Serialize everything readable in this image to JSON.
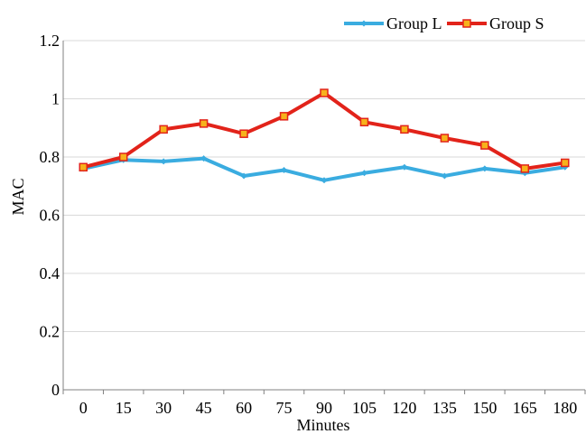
{
  "chart_data": {
    "type": "line",
    "title": "",
    "xlabel": "Minutes",
    "ylabel": "MAC",
    "categories": [
      "0",
      "15",
      "30",
      "45",
      "60",
      "75",
      "90",
      "105",
      "120",
      "135",
      "150",
      "165",
      "180"
    ],
    "ylim": [
      0,
      1.2
    ],
    "yticks": [
      "0",
      "0.2",
      "0.4",
      "0.6",
      "0.8",
      "1",
      "1.2"
    ],
    "grid": true,
    "legend_position": "top-right",
    "series": [
      {
        "name": "Group L",
        "color": "#3aace0",
        "marker": "diamond",
        "values": [
          0.76,
          0.79,
          0.785,
          0.795,
          0.735,
          0.755,
          0.72,
          0.745,
          0.765,
          0.735,
          0.76,
          0.745,
          0.765
        ]
      },
      {
        "name": "Group S",
        "color": "#e2231a",
        "marker": "square",
        "values": [
          0.765,
          0.8,
          0.895,
          0.915,
          0.88,
          0.94,
          1.02,
          0.92,
          0.895,
          0.865,
          0.84,
          0.76,
          0.78
        ]
      }
    ]
  }
}
